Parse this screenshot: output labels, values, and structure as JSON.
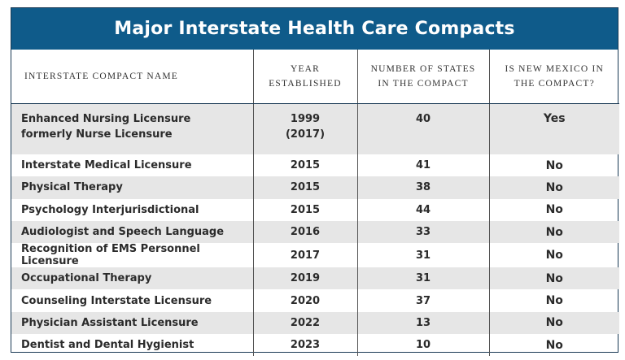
{
  "title": "Major Interstate Health Care Compacts",
  "headers": {
    "name": "Interstate Compact Name",
    "year_line1": "Year",
    "year_line2": "Established",
    "states_line1": "Number of States",
    "states_line2": "in the Compact",
    "nm_line1": "Is New Mexico in",
    "nm_line2": "the Compact?"
  },
  "rows": [
    {
      "name_line1": "Enhanced Nursing Licensure",
      "name_line2": "formerly Nurse Licensure",
      "year_line1": "1999",
      "year_line2": "(2017)",
      "states": "40",
      "nm": "Yes"
    },
    {
      "name": "Interstate Medical Licensure",
      "year": "2015",
      "states": "41",
      "nm": "No"
    },
    {
      "name": "Physical Therapy",
      "year": "2015",
      "states": "38",
      "nm": "No"
    },
    {
      "name": "Psychology Interjurisdictional",
      "year": "2015",
      "states": "44",
      "nm": "No"
    },
    {
      "name": "Audiologist and Speech Language",
      "year": "2016",
      "states": "33",
      "nm": "No"
    },
    {
      "name": "Recognition of EMS Personnel Licensure",
      "year": "2017",
      "states": "31",
      "nm": "No"
    },
    {
      "name": "Occupational Therapy",
      "year": "2019",
      "states": "31",
      "nm": "No"
    },
    {
      "name": "Counseling Interstate Licensure",
      "year": "2020",
      "states": "37",
      "nm": "No"
    },
    {
      "name": "Physician Assistant Licensure",
      "year": "2022",
      "states": "13",
      "nm": "No"
    },
    {
      "name": "Dentist and Dental Hygienist",
      "year": "2023",
      "states": "10",
      "nm": "No"
    }
  ]
}
